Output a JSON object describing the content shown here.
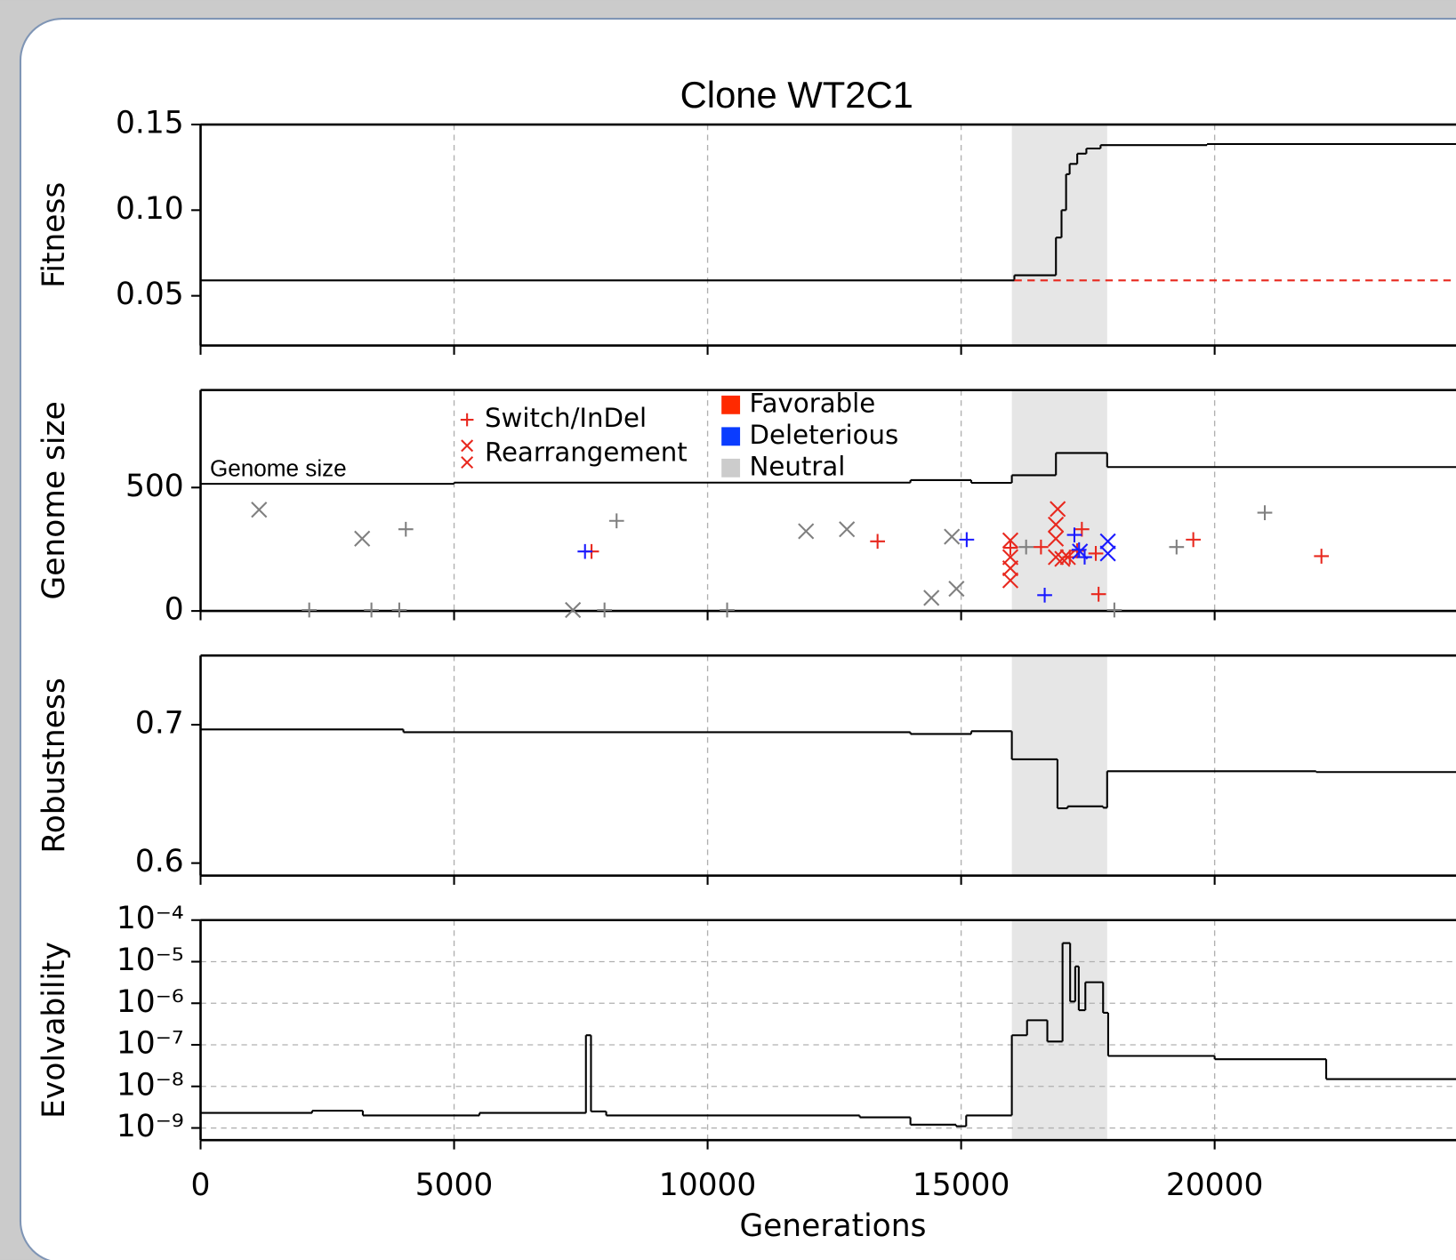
{
  "chart_data": [
    {
      "type": "line",
      "title": "Clone WT2C1",
      "ylabel": "Fitness",
      "xlim": [
        0,
        24760
      ],
      "xticks": [
        0,
        5000,
        10000,
        15000,
        20000
      ],
      "ylim": [
        0.021,
        0.15
      ],
      "yticks": [
        0.05,
        {
          "value": 0.1,
          "label": "0.10"
        },
        0.15
      ],
      "grid_x": true,
      "shaded_span": [
        16000,
        17880
      ],
      "series": [
        {
          "color": "#000000",
          "x": [
            0,
            16050,
            16870,
            16980,
            17070,
            17140,
            17290,
            17470,
            17750,
            19850
          ],
          "values": [
            0.059,
            0.062,
            0.084,
            0.1,
            0.121,
            0.127,
            0.133,
            0.136,
            0.138,
            0.1386
          ]
        },
        {
          "color": "#e8281e",
          "dashed": true,
          "x": [
            16050
          ],
          "values": [
            0.059
          ]
        }
      ]
    },
    {
      "type": "line",
      "ylabel": "Genome size",
      "annotation": "Genome size",
      "xlim": [
        0,
        24760
      ],
      "xticks": [
        0,
        5000,
        10000,
        15000,
        20000
      ],
      "ylim": [
        0,
        895
      ],
      "yticks": [
        0,
        500
      ],
      "grid_x": true,
      "shaded_span": [
        16000,
        17880
      ],
      "marker_legend": [
        {
          "label": "Switch/InDel",
          "marker": "+",
          "color": "#e8281e"
        },
        {
          "label": "Rearrangement",
          "marker": "x",
          "color": "#e8281e"
        }
      ],
      "effect_legend": [
        {
          "label": "Favorable",
          "color": "#ff2a00"
        },
        {
          "label": "Deleterious",
          "color": "#0a3cff"
        },
        {
          "label": "Neutral",
          "color": "#cccccc"
        }
      ],
      "series": [
        {
          "color": "#000000",
          "x": [
            0,
            5000,
            14000,
            15200,
            16000,
            16870,
            17880
          ],
          "values": [
            515,
            520,
            530,
            519,
            550,
            640,
            583
          ]
        },
        {
          "type": "scatter",
          "marker": "+",
          "color": "#808080",
          "x": [
            4048,
            8205,
            20989,
            19249,
            16282,
            2143,
            3370,
            3919,
            7967,
            10385,
            18022
          ],
          "values": [
            331,
            365,
            398,
            259,
            259,
            4,
            4,
            4,
            4,
            4,
            4
          ]
        },
        {
          "type": "scatter",
          "marker": "x",
          "color": "#808080",
          "x": [
            1154,
            3187,
            11941,
            12747,
            14817,
            14414,
            14908,
            7344
          ],
          "values": [
            410,
            293,
            323,
            331,
            301,
            53,
            90,
            4
          ]
        },
        {
          "type": "scatter",
          "marker": "+",
          "color": "#e8281e",
          "x": [
            7711,
            13352,
            19579,
            22106,
            16575,
            17381,
            17143,
            17711,
            17656,
            15971,
            17289
          ],
          "values": [
            241,
            282,
            289,
            222,
            259,
            331,
            218,
            68,
            233,
            256,
            244
          ]
        },
        {
          "type": "scatter",
          "marker": "x",
          "color": "#e8281e",
          "x": [
            16905,
            16868,
            16868,
            16868,
            15971,
            15971,
            15971,
            15971,
            16996,
            17106
          ],
          "values": [
            413,
            350,
            293,
            218,
            286,
            218,
            173,
            124,
            211,
            218
          ]
        },
        {
          "type": "scatter",
          "marker": "+",
          "color": "#1a1aff",
          "x": [
            7582,
            15110,
            16648,
            17234,
            17326,
            17436
          ],
          "values": [
            241,
            289,
            64,
            308,
            248,
            218
          ]
        },
        {
          "type": "scatter",
          "marker": "x",
          "color": "#1a1aff",
          "x": [
            17894,
            17894,
            17344
          ],
          "values": [
            282,
            233,
            241
          ]
        }
      ]
    },
    {
      "type": "line",
      "ylabel": "Robustness",
      "xlim": [
        0,
        24760
      ],
      "xticks": [
        0,
        5000,
        10000,
        15000,
        20000
      ],
      "ylim": [
        0.591,
        0.75
      ],
      "yticks": [
        0.6,
        0.7
      ],
      "grid_x": true,
      "shaded_span": [
        16000,
        17880
      ],
      "series": [
        {
          "color": "#000000",
          "x": [
            0,
            4000,
            14000,
            15200,
            16000,
            16900,
            17100,
            17800,
            17880,
            22000
          ],
          "values": [
            0.6966,
            0.6946,
            0.6933,
            0.6953,
            0.675,
            0.6396,
            0.641,
            0.64,
            0.6664,
            0.6658
          ]
        }
      ]
    },
    {
      "type": "line",
      "ylabel": "Evolvability",
      "xlabel": "Generations",
      "log_y": true,
      "xlim": [
        0,
        24760
      ],
      "xticks": [
        0,
        5000,
        10000,
        15000,
        20000
      ],
      "ylim": [
        5.1e-10,
        0.0001
      ],
      "yticks": [
        {
          "value": 0.0001,
          "label": "10⁻⁴"
        },
        {
          "value": 1e-05,
          "label": "10⁻⁵"
        },
        {
          "value": 1e-06,
          "label": "10⁻⁶"
        },
        {
          "value": 1e-07,
          "label": "10⁻⁷"
        },
        {
          "value": 1e-08,
          "label": "10⁻⁸"
        },
        {
          "value": 1e-09,
          "label": "10⁻⁹"
        }
      ],
      "grid_x": true,
      "grid_y": true,
      "shaded_span": [
        16000,
        17880
      ],
      "series": [
        {
          "color": "#000000",
          "x": [
            0,
            2200,
            3200,
            5500,
            7600,
            7700,
            8000,
            13000,
            14000,
            14900,
            15100,
            16000,
            16300,
            16700,
            17000,
            17150,
            17250,
            17320,
            17450,
            17800,
            17900,
            20000,
            22200
          ],
          "values": [
            2.3e-09,
            2.6e-09,
            2e-09,
            2.3e-09,
            1.7e-07,
            2.5e-09,
            2e-09,
            1.8e-09,
            1.2e-09,
            1.1e-09,
            2e-09,
            1.7e-07,
            3.9e-07,
            1.2e-07,
            2.8e-05,
            1.1e-06,
            7.7e-06,
            6.8e-07,
            3.2e-06,
            5.9e-07,
            5.4e-08,
            4.5e-08,
            1.5e-08
          ]
        }
      ]
    }
  ]
}
